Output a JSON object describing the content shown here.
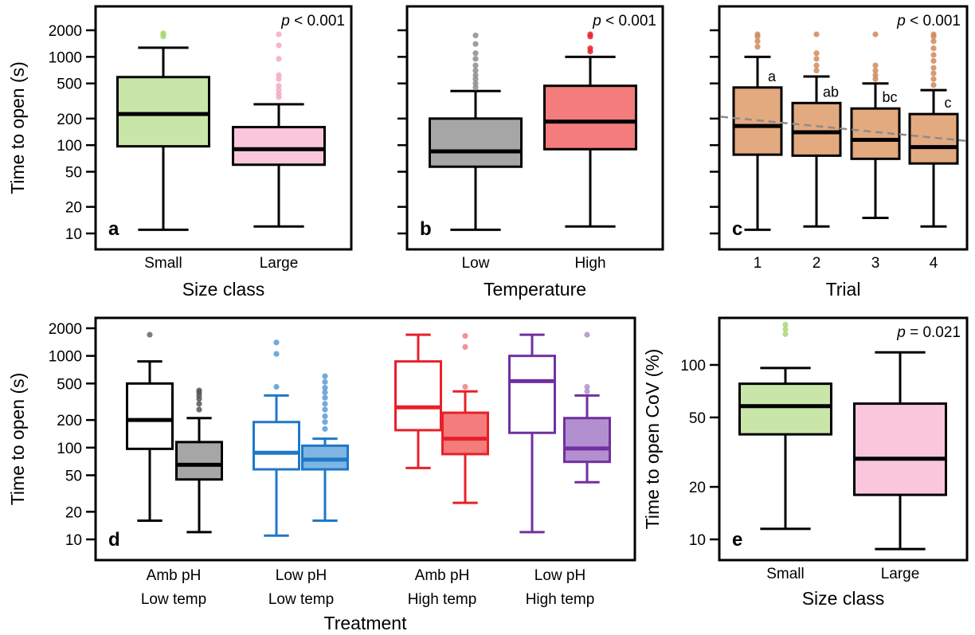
{
  "chart_data": [
    {
      "panel": "a",
      "type": "box",
      "xlabel": "Size class",
      "ylabel": "Time to open (s)",
      "scale": "log",
      "ylim": [
        8,
        2600
      ],
      "yticks": [
        10,
        20,
        50,
        100,
        200,
        500,
        1000,
        2000
      ],
      "ytick_labels": [
        "10",
        "20",
        "50",
        "100",
        "200",
        "500",
        "1000",
        "2000"
      ],
      "p_value": "p < 0.001",
      "categories": [
        "Small",
        "Large"
      ],
      "boxes": [
        {
          "label": "Small",
          "whisker_low": 11,
          "q1": 97,
          "median": 225,
          "q3": 590,
          "whisker_high": 1270,
          "outliers": [
            1700,
            1800,
            1850
          ],
          "fill": "#c9e6a8",
          "outlier_color": "#a8d878",
          "stroke": "#000000"
        },
        {
          "label": "Large",
          "whisker_low": 12,
          "q1": 60,
          "median": 90,
          "q3": 160,
          "whisker_high": 290,
          "outliers": [
            350,
            380,
            420,
            470,
            560,
            620,
            950,
            1350,
            1800
          ],
          "fill": "#f9c6dc",
          "outlier_color": "#f4a8c8",
          "stroke": "#000000"
        }
      ]
    },
    {
      "panel": "b",
      "type": "box",
      "xlabel": "Temperature",
      "ylabel": "",
      "scale": "log",
      "ylim": [
        8,
        2600
      ],
      "yticks": [
        10,
        20,
        50,
        100,
        200,
        500,
        1000,
        2000
      ],
      "ytick_labels": [],
      "p_value": "p < 0.001",
      "categories": [
        "Low",
        "High"
      ],
      "boxes": [
        {
          "label": "Low",
          "whisker_low": 11,
          "q1": 57,
          "median": 85,
          "q3": 200,
          "whisker_high": 410,
          "outliers": [
            450,
            500,
            560,
            620,
            700,
            800,
            950,
            1100,
            1400,
            1750
          ],
          "fill": "#a6a6a6",
          "outlier_color": "#8c8c8c",
          "stroke": "#000000"
        },
        {
          "label": "High",
          "whisker_low": 12,
          "q1": 90,
          "median": 185,
          "q3": 470,
          "whisker_high": 1000,
          "outliers": [
            1150,
            1250,
            1700,
            1800
          ],
          "fill": "#f47c7c",
          "outlier_color": "#e8202a",
          "stroke": "#000000"
        }
      ]
    },
    {
      "panel": "c",
      "type": "box",
      "xlabel": "Trial",
      "ylabel": "",
      "scale": "log",
      "ylim": [
        8,
        2600
      ],
      "yticks": [
        10,
        20,
        50,
        100,
        200,
        500,
        1000,
        2000
      ],
      "ytick_labels": [],
      "p_value": "p < 0.001",
      "categories": [
        "1",
        "2",
        "3",
        "4"
      ],
      "trend_line": {
        "start": 210,
        "end": 112,
        "color": "#8c8c8c"
      },
      "boxes": [
        {
          "label": "1",
          "sig": "a",
          "whisker_low": 11,
          "q1": 78,
          "median": 165,
          "q3": 450,
          "whisker_high": 1000,
          "outliers": [
            1300,
            1500,
            1700,
            1800
          ],
          "fill": "#e3a97f",
          "outlier_color": "#d08a5a",
          "stroke": "#000000"
        },
        {
          "label": "2",
          "sig": "ab",
          "whisker_low": 12,
          "q1": 76,
          "median": 140,
          "q3": 300,
          "whisker_high": 600,
          "outliers": [
            700,
            800,
            950,
            1100,
            1800
          ],
          "fill": "#e3a97f",
          "outlier_color": "#d08a5a",
          "stroke": "#000000"
        },
        {
          "label": "3",
          "sig": "bc",
          "whisker_low": 15,
          "q1": 70,
          "median": 115,
          "q3": 260,
          "whisker_high": 500,
          "outliers": [
            560,
            620,
            700,
            800,
            1800
          ],
          "fill": "#e3a97f",
          "outlier_color": "#d08a5a",
          "stroke": "#000000"
        },
        {
          "label": "4",
          "sig": "c",
          "whisker_low": 12,
          "q1": 62,
          "median": 95,
          "q3": 225,
          "whisker_high": 420,
          "outliers": [
            480,
            560,
            650,
            750,
            900,
            1050,
            1250,
            1500,
            1700,
            1800
          ],
          "fill": "#e3a97f",
          "outlier_color": "#d08a5a",
          "stroke": "#000000"
        }
      ]
    },
    {
      "panel": "d",
      "type": "box",
      "xlabel": "Treatment",
      "ylabel": "Time to open (s)",
      "scale": "log",
      "ylim": [
        8,
        2600
      ],
      "yticks": [
        10,
        20,
        50,
        100,
        200,
        500,
        1000,
        2000
      ],
      "ytick_labels": [
        "10",
        "20",
        "50",
        "100",
        "200",
        "500",
        "1000",
        "2000"
      ],
      "groups": [
        {
          "line1": "Amb pH",
          "line2": "Low temp"
        },
        {
          "line1": "Low pH",
          "line2": "Low temp"
        },
        {
          "line1": "Amb pH",
          "line2": "High temp"
        },
        {
          "line1": "Low pH",
          "line2": "High temp"
        }
      ],
      "boxes": [
        {
          "group": 0,
          "whisker_low": 16,
          "q1": 97,
          "median": 200,
          "q3": 500,
          "whisker_high": 870,
          "outliers": [
            1700
          ],
          "fill": "#ffffff",
          "outlier_color": "#666666",
          "stroke": "#000000"
        },
        {
          "group": 0,
          "whisker_low": 12,
          "q1": 45,
          "median": 65,
          "q3": 115,
          "whisker_high": 210,
          "outliers": [
            260,
            300,
            340,
            370,
            400,
            420
          ],
          "fill": "#a6a6a6",
          "outlier_color": "#555555",
          "stroke": "#000000"
        },
        {
          "group": 1,
          "whisker_low": 11,
          "q1": 58,
          "median": 88,
          "q3": 190,
          "whisker_high": 370,
          "outliers": [
            460,
            1050,
            1400
          ],
          "fill": "#ffffff",
          "outlier_color": "#5b9bd5",
          "stroke": "#1f78c8"
        },
        {
          "group": 1,
          "whisker_low": 16,
          "q1": 58,
          "median": 74,
          "q3": 105,
          "whisker_high": 125,
          "outliers": [
            160,
            190,
            220,
            260,
            300,
            350,
            400,
            450,
            520,
            600
          ],
          "fill": "#7eb6e3",
          "outlier_color": "#5b9bd5",
          "stroke": "#1f78c8"
        },
        {
          "group": 2,
          "whisker_low": 60,
          "q1": 155,
          "median": 275,
          "q3": 870,
          "whisker_high": 1700,
          "outliers": [],
          "fill": "#ffffff",
          "outlier_color": "#f08080",
          "stroke": "#e8202a"
        },
        {
          "group": 2,
          "whisker_low": 25,
          "q1": 85,
          "median": 125,
          "q3": 240,
          "whisker_high": 410,
          "outliers": [
            460,
            1250,
            1650
          ],
          "fill": "#f47c7c",
          "outlier_color": "#f08080",
          "stroke": "#e8202a"
        },
        {
          "group": 3,
          "whisker_low": 12,
          "q1": 145,
          "median": 530,
          "q3": 1000,
          "whisker_high": 1700,
          "outliers": [],
          "fill": "#ffffff",
          "outlier_color": "#b38fd0",
          "stroke": "#7030a0"
        },
        {
          "group": 3,
          "whisker_low": 42,
          "q1": 70,
          "median": 98,
          "q3": 210,
          "whisker_high": 370,
          "outliers": [
            410,
            460,
            1700
          ],
          "fill": "#b48fd0",
          "outlier_color": "#b38fd0",
          "stroke": "#7030a0"
        }
      ]
    },
    {
      "panel": "e",
      "type": "box",
      "xlabel": "Size class",
      "ylabel": "Time to open CoV (%)",
      "scale": "log",
      "ylim": [
        8.5,
        200
      ],
      "yticks": [
        10,
        20,
        50,
        100
      ],
      "ytick_labels": [
        "10",
        "20",
        "50",
        "100"
      ],
      "p_value": "p = 0.021",
      "categories": [
        "Small",
        "Large"
      ],
      "boxes": [
        {
          "label": "Small",
          "whisker_low": 11.5,
          "q1": 40,
          "median": 58,
          "q3": 78,
          "whisker_high": 96,
          "outliers": [
            150,
            160,
            170
          ],
          "fill": "#c9e6a8",
          "outlier_color": "#a8d878",
          "stroke": "#000000"
        },
        {
          "label": "Large",
          "whisker_low": 8.8,
          "q1": 18,
          "median": 29,
          "q3": 60,
          "whisker_high": 118,
          "outliers": [],
          "fill": "#f9c6dc",
          "outlier_color": "#f4a8c8",
          "stroke": "#000000"
        }
      ]
    }
  ]
}
